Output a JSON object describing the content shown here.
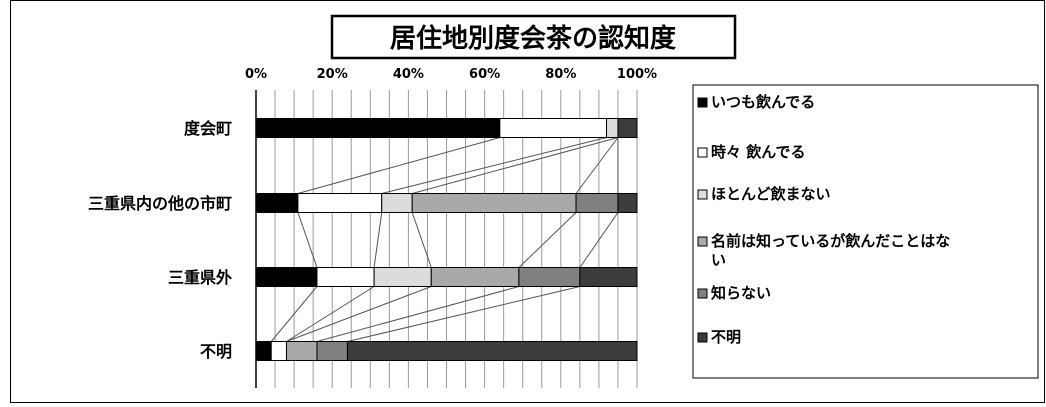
{
  "chart_data": {
    "type": "bar",
    "stacked": true,
    "percent": true,
    "orientation": "horizontal",
    "title": "居住地別度会茶の認知度",
    "xlabel": "",
    "ylabel": "",
    "xlim": [
      0,
      100
    ],
    "x_ticks": [
      "0%",
      "20%",
      "40%",
      "60%",
      "80%",
      "100%"
    ],
    "grid": "vertical every 5%",
    "series_lines": true,
    "legend_position": "right",
    "categories": [
      "度会町",
      "三重県内の他の市町",
      "三重県外",
      "不明"
    ],
    "series": [
      {
        "name": "いつも飲んでる",
        "color": "#000000",
        "values": [
          64,
          11,
          16,
          4
        ]
      },
      {
        "name": "時々 飲んでる",
        "color": "#ffffff",
        "values": [
          28,
          22,
          15,
          4
        ]
      },
      {
        "name": "ほとんど飲まない",
        "color": "#dcdcdc",
        "values": [
          3,
          8,
          15,
          0
        ]
      },
      {
        "name": "名前は知っているが飲んだことはない",
        "color": "#a9a9a9",
        "values": [
          0,
          43,
          23,
          8
        ]
      },
      {
        "name": "知らない",
        "color": "#808080",
        "values": [
          0,
          11,
          16,
          8
        ]
      },
      {
        "name": "不明",
        "color": "#3c3c3c",
        "values": [
          5,
          5,
          15,
          76
        ]
      }
    ]
  }
}
